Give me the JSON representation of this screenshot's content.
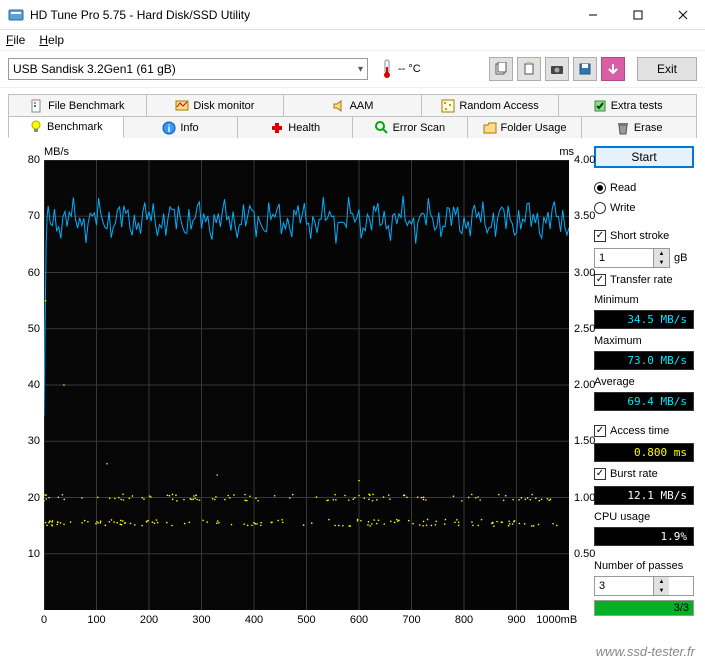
{
  "window": {
    "title": "HD Tune Pro 5.75 - Hard Disk/SSD Utility"
  },
  "menu": {
    "file": "File",
    "help": "Help"
  },
  "toolbar": {
    "device": "USB Sandisk 3.2Gen1 (61 gB)",
    "temp_value": "-- °C",
    "exit": "Exit"
  },
  "tabs_top": [
    {
      "label": "File Benchmark"
    },
    {
      "label": "Disk monitor"
    },
    {
      "label": "AAM"
    },
    {
      "label": "Random Access"
    },
    {
      "label": "Extra tests"
    }
  ],
  "tabs_bottom": [
    {
      "label": "Benchmark"
    },
    {
      "label": "Info"
    },
    {
      "label": "Health"
    },
    {
      "label": "Error Scan"
    },
    {
      "label": "Folder Usage"
    },
    {
      "label": "Erase"
    }
  ],
  "chart": {
    "type": "line+scatter",
    "y1_label": "MB/s",
    "y2_label": "ms",
    "x_unit": "mB",
    "xlim": [
      0,
      1000
    ],
    "y1_lim": [
      0,
      80
    ],
    "y2_lim": [
      0,
      4.0
    ],
    "y1_ticks": [
      10,
      20,
      30,
      40,
      50,
      60,
      70,
      80
    ],
    "y2_ticks": [
      "0.50",
      "1.00",
      "1.50",
      "2.00",
      "2.50",
      "3.00",
      "3.50",
      "4.00"
    ],
    "x_ticks": [
      0,
      100,
      200,
      300,
      400,
      500,
      600,
      700,
      800,
      900
    ],
    "x_last_label": "1000mB",
    "background_color": "#000000",
    "grid_color": "#333333",
    "transfer_line_color": "#00b0ff",
    "transfer_mean": 69.4,
    "transfer_jitter": 2.5,
    "transfer_startup": [
      34.5,
      50,
      65,
      70
    ],
    "access_scatter_color": "#ffff00",
    "access_band1_y": 20,
    "access_band2_y": 15.5,
    "access_jitter": 0.6
  },
  "side": {
    "start": "Start",
    "read": "Read",
    "write": "Write",
    "short_stroke": "Short stroke",
    "short_stroke_val": "1",
    "gb_unit": "gB",
    "transfer_rate": "Transfer rate",
    "minimum": "Minimum",
    "minimum_val": "34.5 MB/s",
    "maximum": "Maximum",
    "maximum_val": "73.0 MB/s",
    "average": "Average",
    "average_val": "69.4 MB/s",
    "access_time": "Access time",
    "access_val": "0.800 ms",
    "burst_rate": "Burst rate",
    "burst_val": "12.1 MB/s",
    "cpu_usage": "CPU usage",
    "cpu_val": "1.9%",
    "passes": "Number of passes",
    "passes_val": "3",
    "progress_text": "3/3",
    "progress_pct": 100
  },
  "watermark": "www.ssd-tester.fr"
}
